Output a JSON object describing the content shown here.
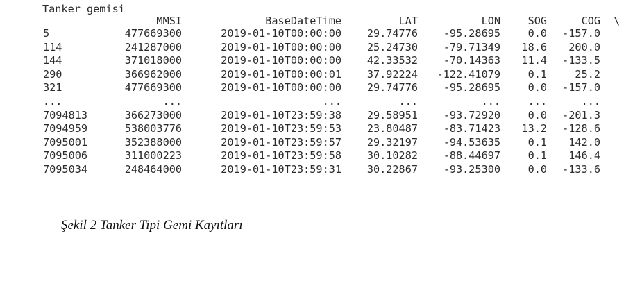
{
  "title": "Tanker gemisi",
  "columns": {
    "mmsi": "MMSI",
    "time": "BaseDateTime",
    "lat": "LAT",
    "lon": "LON",
    "sog": "SOG",
    "cog": "COG",
    "continuation": "\\"
  },
  "rows": [
    {
      "idx": "5",
      "mmsi": "477669300",
      "time": "2019-01-10T00:00:00",
      "lat": "29.74776",
      "lon": "-95.28695",
      "sog": "0.0",
      "cog": "-157.0"
    },
    {
      "idx": "114",
      "mmsi": "241287000",
      "time": "2019-01-10T00:00:00",
      "lat": "25.24730",
      "lon": "-79.71349",
      "sog": "18.6",
      "cog": "200.0"
    },
    {
      "idx": "144",
      "mmsi": "371018000",
      "time": "2019-01-10T00:00:00",
      "lat": "42.33532",
      "lon": "-70.14363",
      "sog": "11.4",
      "cog": "-133.5"
    },
    {
      "idx": "290",
      "mmsi": "366962000",
      "time": "2019-01-10T00:00:01",
      "lat": "37.92224",
      "lon": "-122.41079",
      "sog": "0.1",
      "cog": "25.2"
    },
    {
      "idx": "321",
      "mmsi": "477669300",
      "time": "2019-01-10T00:00:00",
      "lat": "29.74776",
      "lon": "-95.28695",
      "sog": "0.0",
      "cog": "-157.0"
    },
    {
      "idx": "...",
      "mmsi": "...",
      "time": "...",
      "lat": "...",
      "lon": "...",
      "sog": "...",
      "cog": "..."
    },
    {
      "idx": "7094813",
      "mmsi": "366273000",
      "time": "2019-01-10T23:59:38",
      "lat": "29.58951",
      "lon": "-93.72920",
      "sog": "0.0",
      "cog": "-201.3"
    },
    {
      "idx": "7094959",
      "mmsi": "538003776",
      "time": "2019-01-10T23:59:53",
      "lat": "23.80487",
      "lon": "-83.71423",
      "sog": "13.2",
      "cog": "-128.6"
    },
    {
      "idx": "7095001",
      "mmsi": "352388000",
      "time": "2019-01-10T23:59:57",
      "lat": "29.32197",
      "lon": "-94.53635",
      "sog": "0.1",
      "cog": "142.0"
    },
    {
      "idx": "7095006",
      "mmsi": "311000223",
      "time": "2019-01-10T23:59:58",
      "lat": "30.10282",
      "lon": "-88.44697",
      "sog": "0.1",
      "cog": "146.4"
    },
    {
      "idx": "7095034",
      "mmsi": "248464000",
      "time": "2019-01-10T23:59:31",
      "lat": "30.22867",
      "lon": "-93.25300",
      "sog": "0.0",
      "cog": "-133.6"
    }
  ],
  "caption": "Şekil 2 Tanker Tipi Gemi Kayıtları"
}
